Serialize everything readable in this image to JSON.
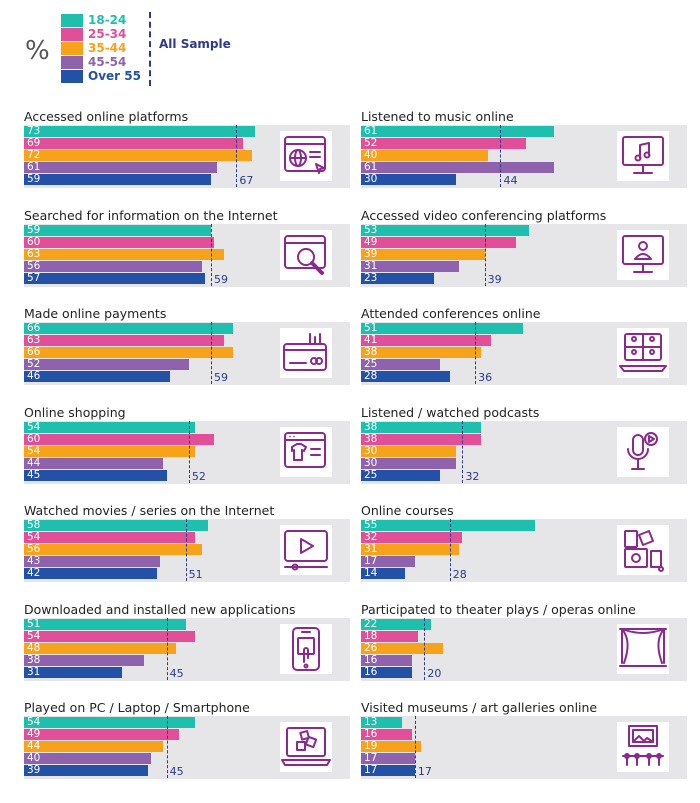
{
  "legend": {
    "symbol": "%",
    "groups": [
      "18-24",
      "25-34",
      "35-44",
      "45-54",
      "Over 55"
    ],
    "average_label": "All Sample"
  },
  "colors": {
    "18-24": "#1ebfac",
    "25-34": "#e04f98",
    "35-44": "#f7a21b",
    "45-54": "#8e62ad",
    "Over 55": "#2251a6",
    "average": "#2e3a87",
    "panel_background": "#e6e6e9",
    "icon": "#8a2a8e"
  },
  "chart_data": [
    {
      "type": "bar",
      "title": "Accessed online platforms",
      "categories": [
        "18-24",
        "25-34",
        "35-44",
        "45-54",
        "Over 55"
      ],
      "values": [
        73,
        69,
        72,
        61,
        59
      ],
      "average": 67,
      "icon": "browser-globe-icon"
    },
    {
      "type": "bar",
      "title": "Listened to music online",
      "categories": [
        "18-24",
        "25-34",
        "35-44",
        "45-54",
        "Over 55"
      ],
      "values": [
        61,
        52,
        40,
        61,
        30
      ],
      "average": 44,
      "icon": "monitor-music-icon"
    },
    {
      "type": "bar",
      "title": "Searched for information on the Internet",
      "categories": [
        "18-24",
        "25-34",
        "35-44",
        "45-54",
        "Over 55"
      ],
      "values": [
        59,
        60,
        63,
        56,
        57
      ],
      "average": 59,
      "icon": "magnifier-window-icon"
    },
    {
      "type": "bar",
      "title": "Accessed video conferencing platforms",
      "categories": [
        "18-24",
        "25-34",
        "35-44",
        "45-54",
        "Over 55"
      ],
      "values": [
        53,
        49,
        39,
        31,
        23
      ],
      "average": 39,
      "icon": "monitor-person-icon"
    },
    {
      "type": "bar",
      "title": "Made online payments",
      "categories": [
        "18-24",
        "25-34",
        "35-44",
        "45-54",
        "Over 55"
      ],
      "values": [
        66,
        63,
        66,
        52,
        46
      ],
      "average": 59,
      "icon": "card-payment-icon"
    },
    {
      "type": "bar",
      "title": "Attended conferences online",
      "categories": [
        "18-24",
        "25-34",
        "35-44",
        "45-54",
        "Over 55"
      ],
      "values": [
        51,
        41,
        38,
        25,
        28
      ],
      "average": 36,
      "icon": "laptop-grid-icon"
    },
    {
      "type": "bar",
      "title": "Online shopping",
      "categories": [
        "18-24",
        "25-34",
        "35-44",
        "45-54",
        "Over 55"
      ],
      "values": [
        54,
        60,
        54,
        44,
        45
      ],
      "average": 52,
      "icon": "shop-window-shirt-icon"
    },
    {
      "type": "bar",
      "title": "Listened / watched podcasts",
      "categories": [
        "18-24",
        "25-34",
        "35-44",
        "45-54",
        "Over 55"
      ],
      "values": [
        38,
        38,
        30,
        30,
        25
      ],
      "average": 32,
      "icon": "microphone-play-icon"
    },
    {
      "type": "bar",
      "title": "Watched movies / series on the Internet",
      "categories": [
        "18-24",
        "25-34",
        "35-44",
        "45-54",
        "Over 55"
      ],
      "values": [
        58,
        54,
        56,
        43,
        42
      ],
      "average": 51,
      "icon": "video-player-icon"
    },
    {
      "type": "bar",
      "title": "Online courses",
      "categories": [
        "18-24",
        "25-34",
        "35-44",
        "45-54",
        "Over 55"
      ],
      "values": [
        55,
        32,
        31,
        17,
        14
      ],
      "average": 28,
      "icon": "course-books-icon"
    },
    {
      "type": "bar",
      "title": "Downloaded and installed new applications",
      "categories": [
        "18-24",
        "25-34",
        "35-44",
        "45-54",
        "Over 55"
      ],
      "values": [
        51,
        54,
        48,
        38,
        31
      ],
      "average": 45,
      "icon": "smartphone-touch-icon"
    },
    {
      "type": "bar",
      "title": "Participated to theater plays / operas online",
      "categories": [
        "18-24",
        "25-34",
        "35-44",
        "45-54",
        "Over 55"
      ],
      "values": [
        22,
        18,
        26,
        16,
        16
      ],
      "average": 20,
      "icon": "theater-stage-icon"
    },
    {
      "type": "bar",
      "title": "Played on PC / Laptop / Smartphone",
      "categories": [
        "18-24",
        "25-34",
        "35-44",
        "45-54",
        "Over 55"
      ],
      "values": [
        54,
        49,
        44,
        40,
        39
      ],
      "average": 45,
      "icon": "laptop-game-icon"
    },
    {
      "type": "bar",
      "title": "Visited museums / art galleries online",
      "categories": [
        "18-24",
        "25-34",
        "35-44",
        "45-54",
        "Over 55"
      ],
      "values": [
        13,
        16,
        19,
        17,
        17
      ],
      "average": 17,
      "icon": "museum-gallery-icon"
    }
  ]
}
